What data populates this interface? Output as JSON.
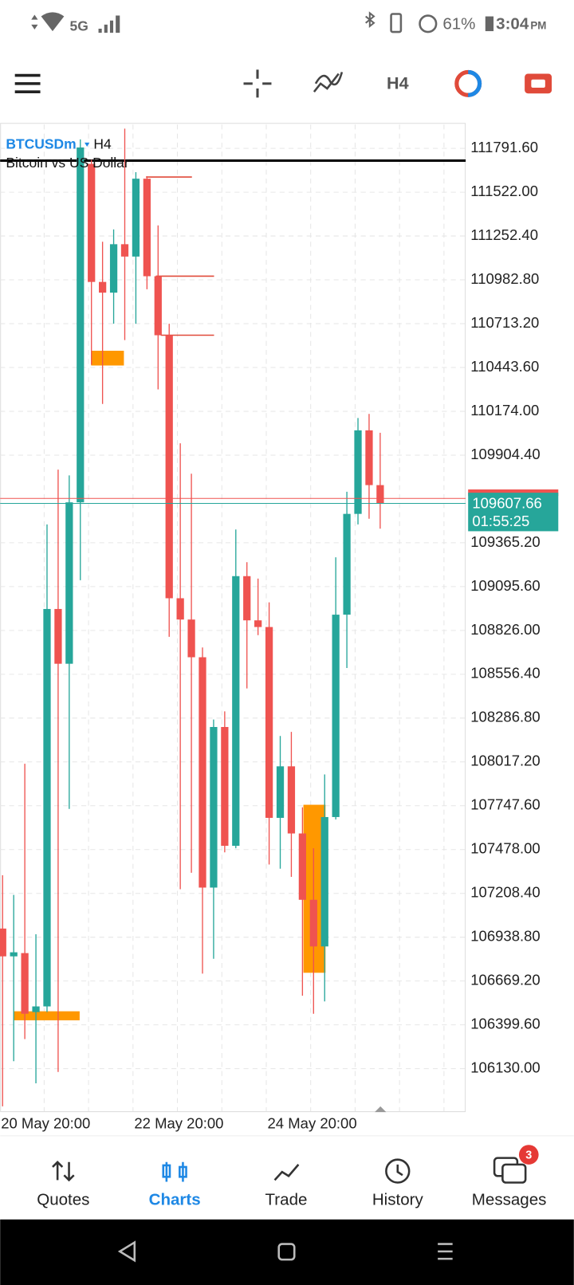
{
  "status_bar": {
    "network": "5G",
    "battery": "61%",
    "time": "3:04",
    "ampm": "PM"
  },
  "toolbar": {
    "timeframe": "H4"
  },
  "chart_data": {
    "type": "candlestick",
    "symbol": "BTCUSDm",
    "timeframe": "H4",
    "description": "Bitcoin vs US Dollar",
    "categories": [
      "20 May 20:00",
      null,
      null,
      null,
      null,
      null,
      null,
      null,
      null,
      null,
      null,
      null,
      "22 May 20:00",
      null,
      null,
      null,
      null,
      null,
      null,
      null,
      null,
      null,
      null,
      null,
      "24 May 20:00",
      null,
      null,
      null,
      null,
      null,
      null,
      null,
      null,
      null,
      null
    ],
    "open": [
      106992,
      106821,
      106841,
      106478,
      106513,
      108958,
      108621,
      109614,
      111696,
      110970,
      110904,
      111202,
      111126,
      111605,
      111005,
      110642,
      109024,
      108893,
      108661,
      107244,
      108232,
      107501,
      109160,
      108888,
      108847,
      107673,
      107990,
      107577,
      107169,
      106882,
      107678,
      108923,
      109543,
      110057,
      109720
    ],
    "high": [
      107320,
      107199,
      108006,
      106957,
      109478,
      109815,
      109780,
      111847,
      111721,
      111217,
      111293,
      111913,
      111645,
      111620,
      111318,
      110713,
      109977,
      109790,
      108721,
      108278,
      108328,
      109447,
      109246,
      109145,
      108999,
      108177,
      108202,
      107738,
      107486,
      107940,
      109276,
      109679,
      110133,
      110158,
      110042
    ],
    "low": [
      105898,
      106176,
      106312,
      106040,
      106478,
      106110,
      107728,
      109135,
      110461,
      110219,
      110713,
      110612,
      110713,
      110925,
      110309,
      108787,
      107234,
      107335,
      106715,
      106806,
      107461,
      107486,
      108469,
      108797,
      107386,
      107360,
      107310,
      106579,
      106468,
      106544,
      107663,
      108595,
      109478,
      109513,
      109452
    ],
    "close": [
      106821,
      106846,
      106468,
      106513,
      108958,
      108621,
      109614,
      111797,
      110970,
      110904,
      111202,
      111126,
      111605,
      111005,
      110642,
      109024,
      108893,
      108661,
      107244,
      108232,
      107501,
      109160,
      108888,
      108847,
      107673,
      107990,
      107577,
      107169,
      106882,
      107678,
      108923,
      109543,
      110057,
      109720,
      109607.66
    ],
    "colors": {
      "up": "#26a69a",
      "down": "#ef5350"
    },
    "ylim": [
      105868,
      111938
    ],
    "yticks": [
      {
        "value": 106130,
        "label": "106130.00"
      },
      {
        "value": 106399.6,
        "label": "106399.60"
      },
      {
        "value": 106669.2,
        "label": "106669.20"
      },
      {
        "value": 106938.8,
        "label": "106938.80"
      },
      {
        "value": 107208.4,
        "label": "107208.40"
      },
      {
        "value": 107478,
        "label": "107478.00"
      },
      {
        "value": 107747.6,
        "label": "107747.60"
      },
      {
        "value": 108017.2,
        "label": "108017.20"
      },
      {
        "value": 108286.8,
        "label": "108286.80"
      },
      {
        "value": 108556.4,
        "label": "108556.40"
      },
      {
        "value": 108826,
        "label": "108826.00"
      },
      {
        "value": 109095.6,
        "label": "109095.60"
      },
      {
        "value": 109365.2,
        "label": "109365.20"
      },
      {
        "value": 109904.4,
        "label": "109904.40"
      },
      {
        "value": 110174,
        "label": "110174.00"
      },
      {
        "value": 110443.6,
        "label": "110443.60"
      },
      {
        "value": 110713.2,
        "label": "110713.20"
      },
      {
        "value": 110982.8,
        "label": "110982.80"
      },
      {
        "value": 111252.4,
        "label": "111252.40"
      },
      {
        "value": 111522,
        "label": "111522.00"
      },
      {
        "value": 111791.6,
        "label": "111791.60"
      }
    ],
    "grid": true,
    "current_price": 109607.66,
    "countdown": "01:55:25"
  },
  "nav": {
    "items": [
      "Quotes",
      "Charts",
      "Trade",
      "History",
      "Messages"
    ],
    "active": 1,
    "messages_badge": 3
  }
}
